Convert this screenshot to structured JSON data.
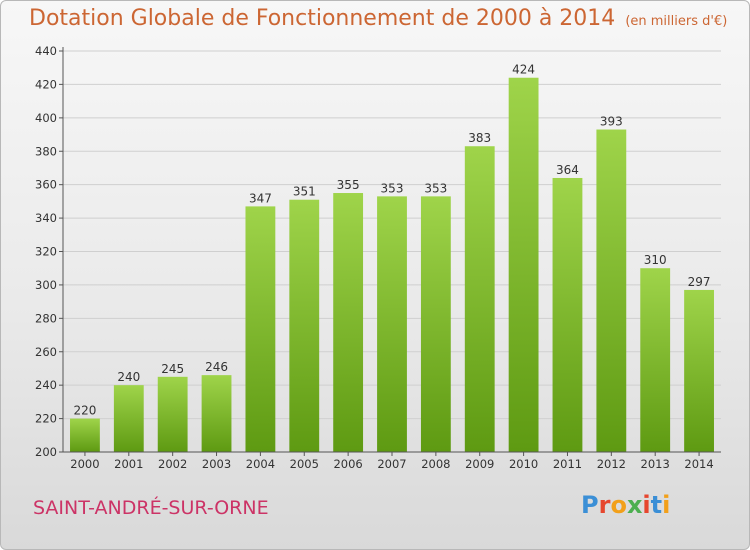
{
  "header": {
    "title": "Dotation Globale de Fonctionnement de 2000 à 2014",
    "subtitle": "(en milliers d'€)"
  },
  "footer": {
    "commune": "SAINT-ANDRÉ-SUR-ORNE",
    "logo_text": "Proxiti",
    "logo_colors": [
      "#3b8fd6",
      "#e6462e",
      "#f2a01a",
      "#4caf50",
      "#e6462e",
      "#3b8fd6",
      "#f2a01a"
    ]
  },
  "colors": {
    "bar_top": "#9fd44a",
    "bar_bottom": "#5e9a12",
    "grid": "#cfcfcf",
    "axis": "#555555",
    "title": "#cc6633",
    "commune": "#cc3366"
  },
  "chart_data": {
    "type": "bar",
    "categories": [
      "2000",
      "2001",
      "2002",
      "2003",
      "2004",
      "2005",
      "2006",
      "2007",
      "2008",
      "2009",
      "2010",
      "2011",
      "2012",
      "2013",
      "2014"
    ],
    "values": [
      220,
      240,
      245,
      246,
      347,
      351,
      355,
      353,
      353,
      383,
      424,
      364,
      393,
      310,
      297
    ],
    "ylim": [
      200,
      440
    ],
    "yticks": [
      200,
      220,
      240,
      260,
      280,
      300,
      320,
      340,
      360,
      380,
      400,
      420,
      440
    ],
    "grid": true,
    "xlabel": "",
    "ylabel": ""
  }
}
